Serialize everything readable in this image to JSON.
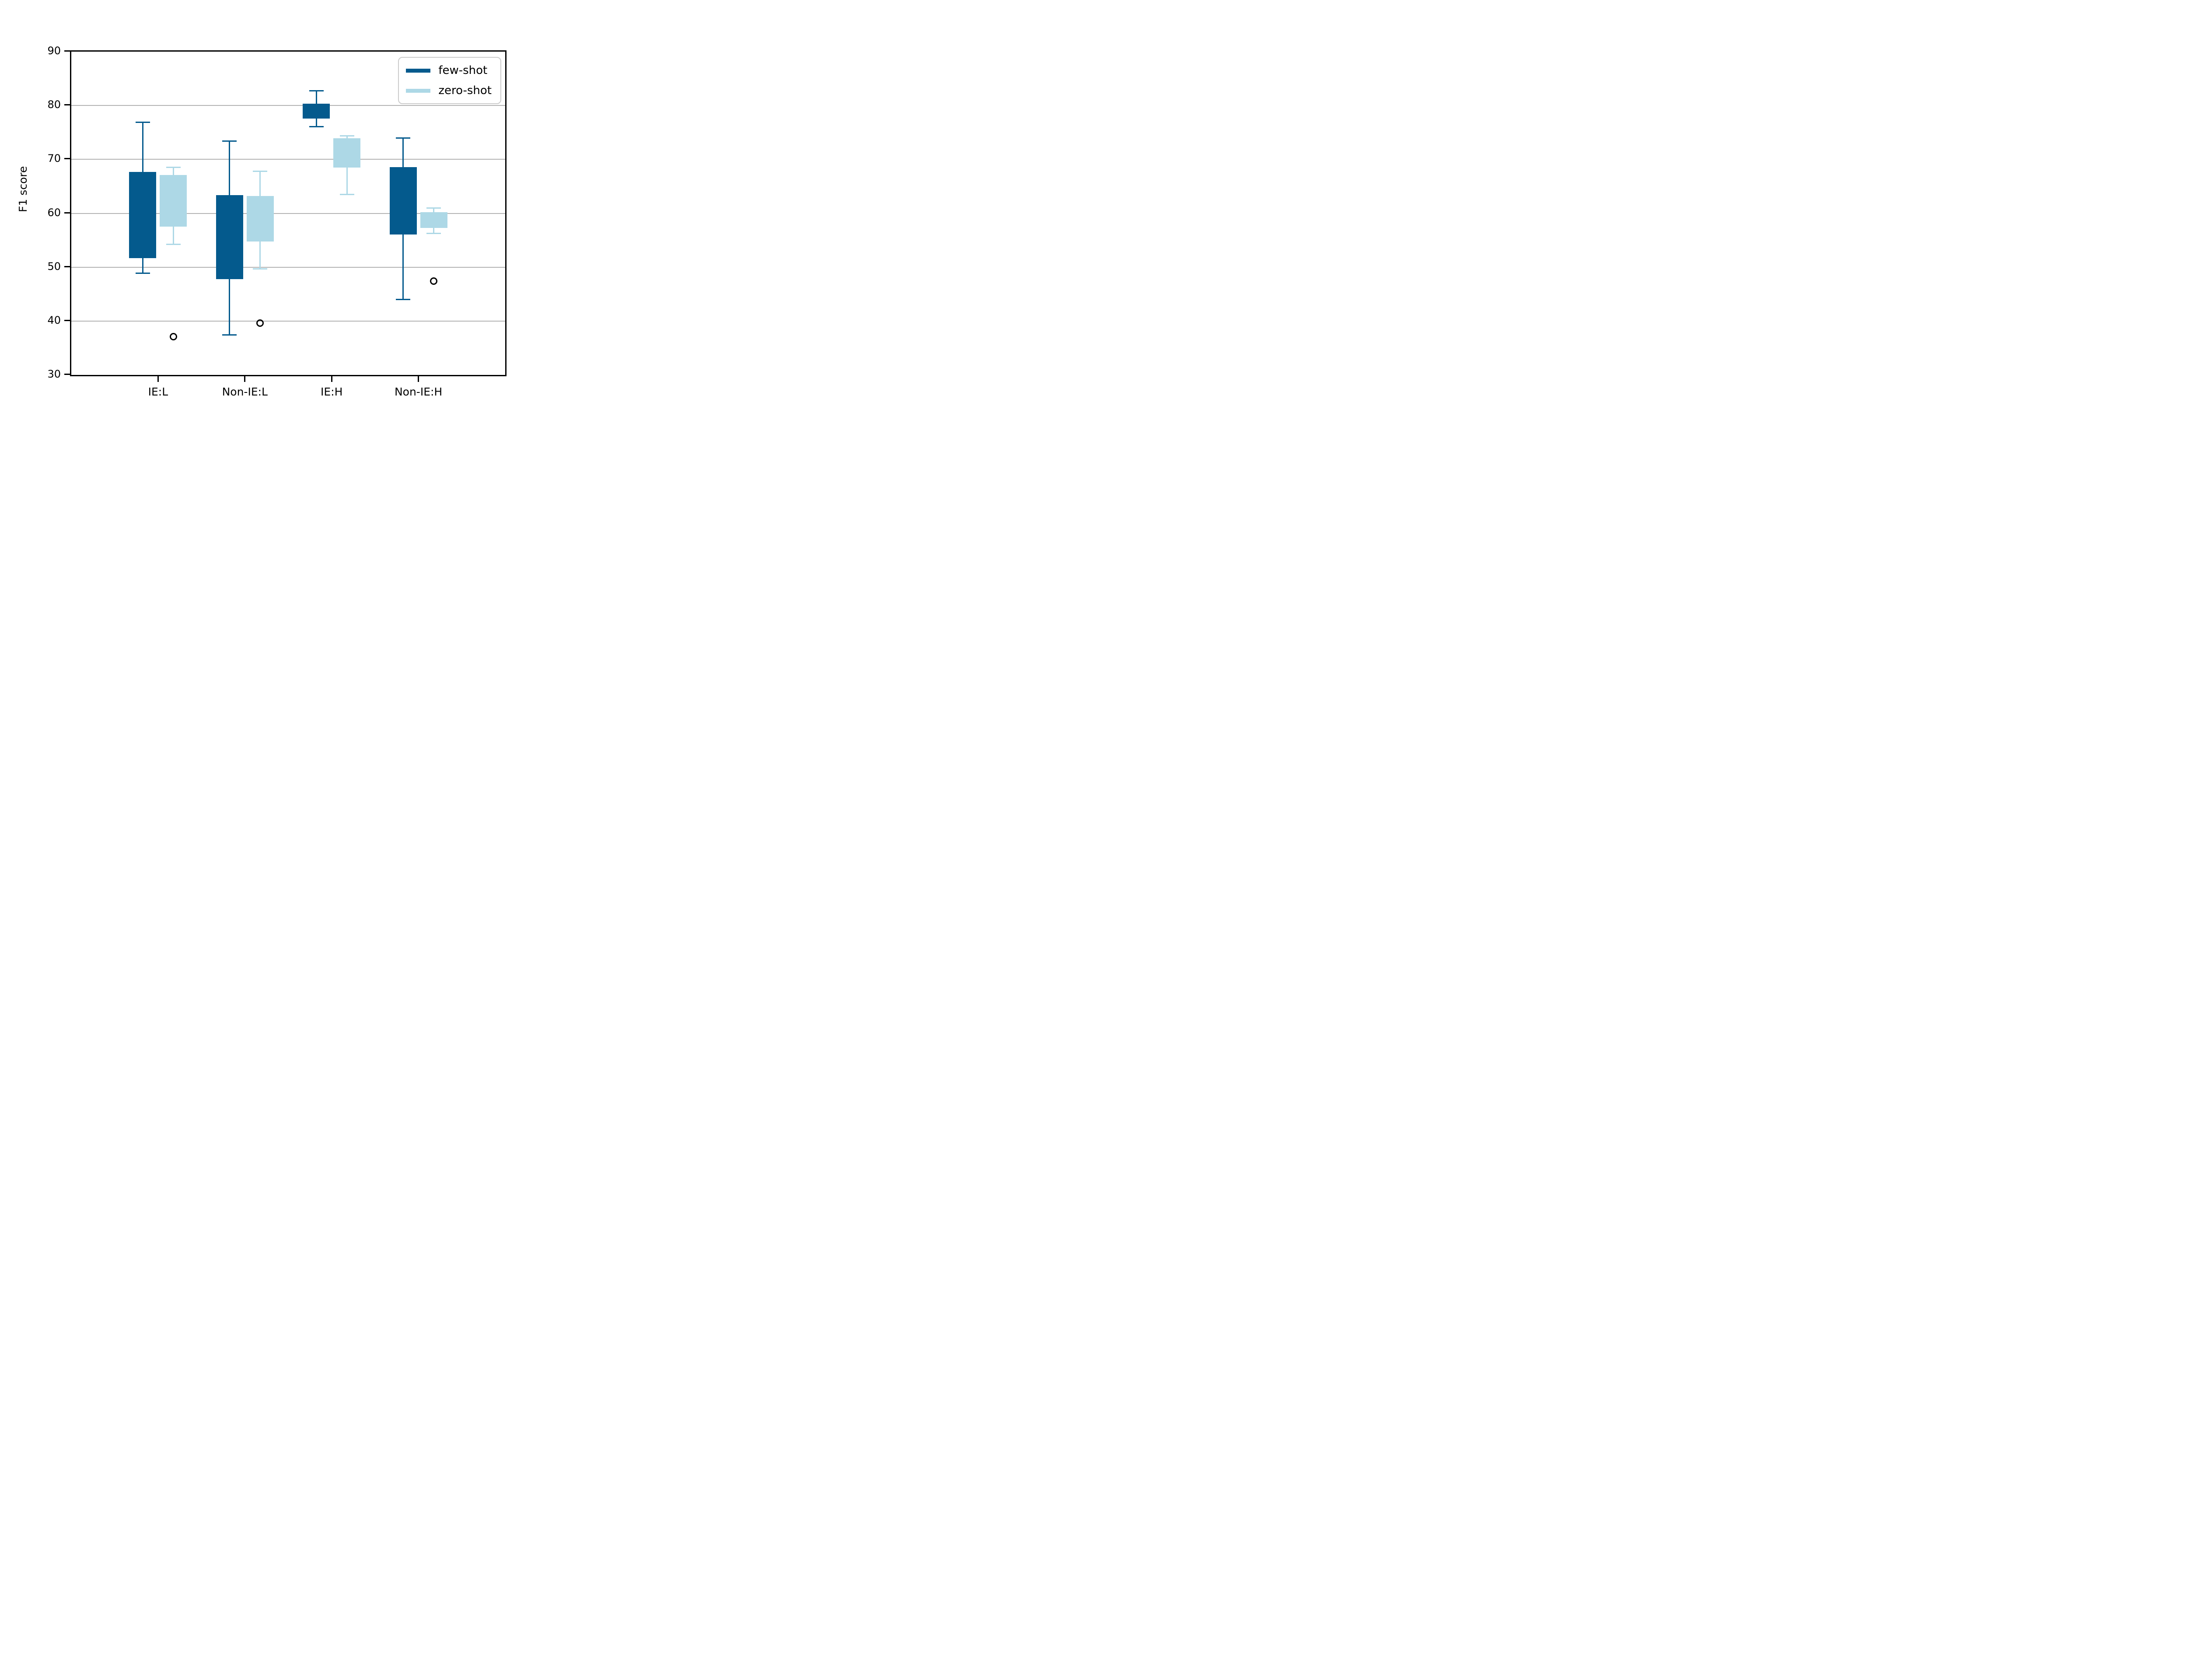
{
  "figure": {
    "background": "#ffffff"
  },
  "chart_data": {
    "type": "boxplot",
    "title": "",
    "xlabel": "",
    "ylabel": "F1 score",
    "ylim": [
      30,
      90
    ],
    "yticks": [
      "30",
      "40",
      "50",
      "60",
      "70",
      "80",
      "90"
    ],
    "ytick_values": [
      30,
      40,
      50,
      60,
      70,
      80,
      90
    ],
    "gridlines": [
      40,
      50,
      60,
      70,
      80
    ],
    "grid_color": "#b3b3b3",
    "grid_on": true,
    "categories": [
      "IE:L",
      "Non-IE:L",
      "IE:H",
      "Non-IE:H"
    ],
    "outlier_marker": "open-circle",
    "outlier_color": "#000000",
    "legend": {
      "position": "upper-right",
      "entries": [
        {
          "label": "few-shot",
          "color": "#045a8d"
        },
        {
          "label": "zero-shot",
          "color": "#add8e6"
        }
      ]
    },
    "series": [
      {
        "name": "few-shot",
        "color": "#045a8d",
        "boxes": [
          {
            "category": "IE:L",
            "whisker_low": 48.9,
            "q1": 51.7,
            "q3": 67.7,
            "whisker_high": 76.9,
            "outliers": []
          },
          {
            "category": "Non-IE:L",
            "whisker_low": 37.4,
            "q1": 47.8,
            "q3": 63.4,
            "whisker_high": 73.4,
            "outliers": []
          },
          {
            "category": "IE:H",
            "whisker_low": 76.1,
            "q1": 77.6,
            "q3": 80.3,
            "whisker_high": 82.7,
            "outliers": []
          },
          {
            "category": "Non-IE:H",
            "whisker_low": 44.0,
            "q1": 56.1,
            "q3": 68.6,
            "whisker_high": 74.0,
            "outliers": []
          }
        ]
      },
      {
        "name": "zero-shot",
        "color": "#add8e6",
        "boxes": [
          {
            "category": "IE:L",
            "whisker_low": 54.2,
            "q1": 57.5,
            "q3": 67.1,
            "whisker_high": 68.5,
            "outliers": [
              37.1
            ]
          },
          {
            "category": "Non-IE:L",
            "whisker_low": 49.7,
            "q1": 54.8,
            "q3": 63.2,
            "whisker_high": 67.8,
            "outliers": [
              39.6
            ]
          },
          {
            "category": "IE:H",
            "whisker_low": 63.5,
            "q1": 68.5,
            "q3": 73.9,
            "whisker_high": 74.4,
            "outliers": []
          },
          {
            "category": "Non-IE:H",
            "whisker_low": 56.3,
            "q1": 57.3,
            "q3": 60.2,
            "whisker_high": 61.0,
            "outliers": [
              47.4
            ]
          }
        ]
      }
    ]
  }
}
